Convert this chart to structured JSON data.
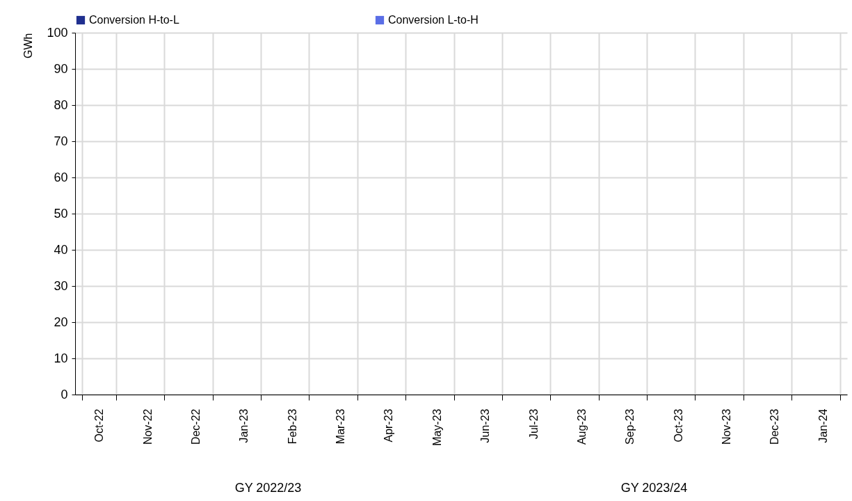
{
  "chart_data": {
    "type": "bar",
    "ylabel": "GWh",
    "categories": [
      "Oct-22",
      "Nov-22",
      "Dec-22",
      "Jan-23",
      "Feb-23",
      "Mar-23",
      "Apr-23",
      "May-23",
      "Jun-23",
      "Jul-23",
      "Aug-23",
      "Sep-23",
      "Oct-23",
      "Nov-23",
      "Dec-23",
      "Jan-24"
    ],
    "series": [
      {
        "name": "Conversion H-to-L",
        "color": "#1f2f8f",
        "values": [
          0,
          0,
          0,
          0,
          0,
          0,
          0,
          0,
          0,
          0,
          0,
          0,
          0,
          0,
          0,
          0
        ]
      },
      {
        "name": "Conversion L-to-H",
        "color": "#5a6ee6",
        "values": [
          0,
          0,
          0,
          0,
          0,
          0,
          0,
          0,
          0,
          0,
          0,
          0,
          0,
          0,
          0,
          0
        ]
      }
    ],
    "ylim": [
      0,
      100
    ],
    "yticks": [
      0,
      10,
      20,
      30,
      40,
      50,
      60,
      70,
      80,
      90,
      100
    ],
    "grid": true,
    "legend": "top",
    "annotations": [
      "GY 2022/23",
      "GY 2023/24"
    ]
  }
}
